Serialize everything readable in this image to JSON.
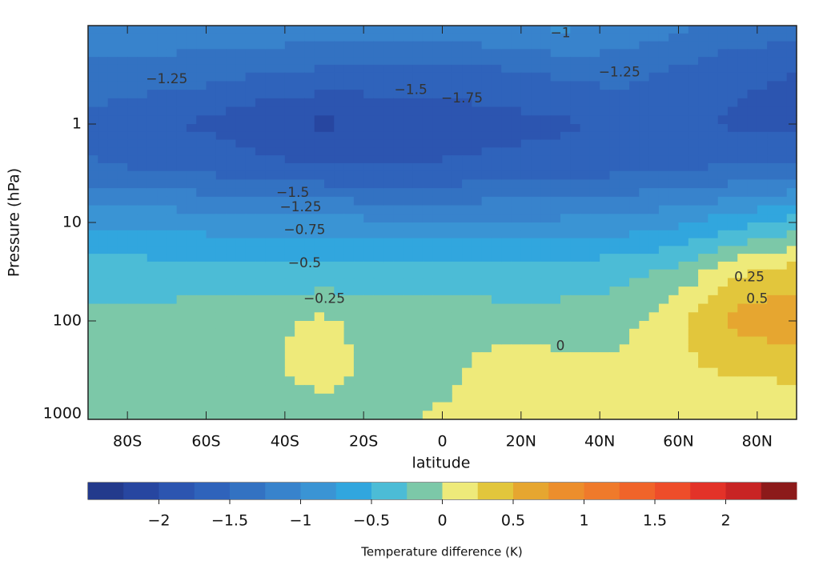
{
  "chart_data": {
    "type": "contour",
    "xlabel": "latitude",
    "ylabel": "Pressure (hPa)",
    "colorbar_label": "Temperature difference (K)",
    "xlim": [
      -90,
      90
    ],
    "xticks": [
      {
        "value": -80,
        "label": "80S"
      },
      {
        "value": -60,
        "label": "60S"
      },
      {
        "value": -40,
        "label": "40S"
      },
      {
        "value": -20,
        "label": "20S"
      },
      0,
      {
        "value": 20,
        "label": "20N"
      },
      {
        "value": 40,
        "label": "40N"
      },
      {
        "value": 60,
        "label": "60N"
      },
      {
        "value": 80,
        "label": "80N"
      }
    ],
    "ylim": [
      1000,
      0.1
    ],
    "yticks": [
      1,
      10,
      100,
      1000
    ],
    "log_y": true,
    "x": [
      -90,
      -75,
      -60,
      -45,
      -30,
      -15,
      0,
      15,
      30,
      45,
      60,
      75,
      90
    ],
    "y": [
      0.1,
      0.3,
      1,
      3,
      10,
      30,
      100,
      300,
      1000
    ],
    "z": [
      [
        -1.1,
        -1.1,
        -1.05,
        -1.05,
        -1.1,
        -1.1,
        -1.1,
        -1.0,
        -0.95,
        -1.05,
        -1.2,
        -1.3,
        -1.4
      ],
      [
        -1.3,
        -1.35,
        -1.4,
        -1.5,
        -1.55,
        -1.6,
        -1.6,
        -1.55,
        -1.45,
        -1.4,
        -1.55,
        -1.7,
        -1.75
      ],
      [
        -1.6,
        -1.7,
        -1.8,
        -1.95,
        -2.05,
        -1.95,
        -1.9,
        -1.85,
        -1.8,
        -1.7,
        -1.7,
        -1.8,
        -1.85
      ],
      [
        -1.45,
        -1.5,
        -1.55,
        -1.65,
        -1.7,
        -1.7,
        -1.7,
        -1.65,
        -1.6,
        -1.55,
        -1.5,
        -1.45,
        -1.4
      ],
      [
        -0.8,
        -0.8,
        -0.85,
        -0.9,
        -0.9,
        -0.95,
        -0.95,
        -0.95,
        -0.95,
        -0.9,
        -0.8,
        -0.6,
        -0.4
      ],
      [
        -0.4,
        -0.4,
        -0.45,
        -0.45,
        -0.45,
        -0.45,
        -0.4,
        -0.4,
        -0.4,
        -0.35,
        -0.2,
        0.2,
        0.35
      ],
      [
        -0.15,
        -0.15,
        -0.1,
        -0.05,
        0.05,
        -0.1,
        -0.1,
        -0.15,
        -0.15,
        -0.1,
        0.2,
        0.6,
        0.7
      ],
      [
        -0.1,
        -0.1,
        -0.1,
        -0.05,
        0.1,
        -0.1,
        -0.1,
        0.15,
        0.1,
        0.05,
        0.2,
        0.3,
        0.3
      ],
      [
        -0.1,
        -0.1,
        -0.1,
        -0.1,
        -0.1,
        -0.1,
        0.05,
        0.1,
        0.1,
        0.1,
        0.1,
        0.1,
        0.1
      ]
    ],
    "levels": [
      -2.5,
      -2.25,
      -2,
      -1.75,
      -1.5,
      -1.25,
      -1,
      -0.75,
      -0.5,
      -0.25,
      0,
      0.25,
      0.5,
      0.75,
      1,
      1.25,
      1.5,
      1.75,
      2,
      2.25,
      2.5
    ],
    "colors": [
      "#233a8c",
      "#2746a0",
      "#2c55b0",
      "#2f63bb",
      "#3372c2",
      "#3883cc",
      "#3a94d4",
      "#31a6de",
      "#4cbcd6",
      "#7cc8a8",
      "#eeea7a",
      "#e2c63c",
      "#e6a630",
      "#ec8e2c",
      "#ef7a2b",
      "#f0642a",
      "#ee4d2a",
      "#e33228",
      "#c82424",
      "#8c1a1a"
    ],
    "cticks": [
      {
        "value": -2,
        "label": "−2"
      },
      {
        "value": -1.5,
        "label": "−1.5"
      },
      {
        "value": -1,
        "label": "−1"
      },
      {
        "value": -0.5,
        "label": "−0.5"
      },
      0,
      0.5,
      1,
      1.5,
      2
    ],
    "contour_labels": [
      {
        "value": -1.25,
        "label": "−1.25",
        "lat": -70,
        "pressure": 0.35
      },
      {
        "value": -1.5,
        "label": "−1.5",
        "lat": -8,
        "pressure": 0.45
      },
      {
        "value": -1.75,
        "label": "−1.75",
        "lat": 5,
        "pressure": 0.55
      },
      {
        "value": -1.25,
        "label": "−1.25",
        "lat": 45,
        "pressure": 0.3
      },
      {
        "value": -1,
        "label": "−1",
        "lat": 30,
        "pressure": 0.12
      },
      {
        "value": -1.5,
        "label": "−1.5",
        "lat": -38,
        "pressure": 5
      },
      {
        "value": -1.25,
        "label": "−1.25",
        "lat": -36,
        "pressure": 7
      },
      {
        "value": -0.75,
        "label": "−0.75",
        "lat": -35,
        "pressure": 12
      },
      {
        "value": -0.5,
        "label": "−0.5",
        "lat": -35,
        "pressure": 26
      },
      {
        "value": -0.25,
        "label": "−0.25",
        "lat": -30,
        "pressure": 60
      },
      {
        "value": 0.5,
        "label": "0.5",
        "lat": 80,
        "pressure": 60
      },
      {
        "value": 0.25,
        "label": "0.25",
        "lat": 78,
        "pressure": 36
      },
      {
        "value": 0,
        "label": "0",
        "lat": 30,
        "pressure": 180
      }
    ]
  }
}
